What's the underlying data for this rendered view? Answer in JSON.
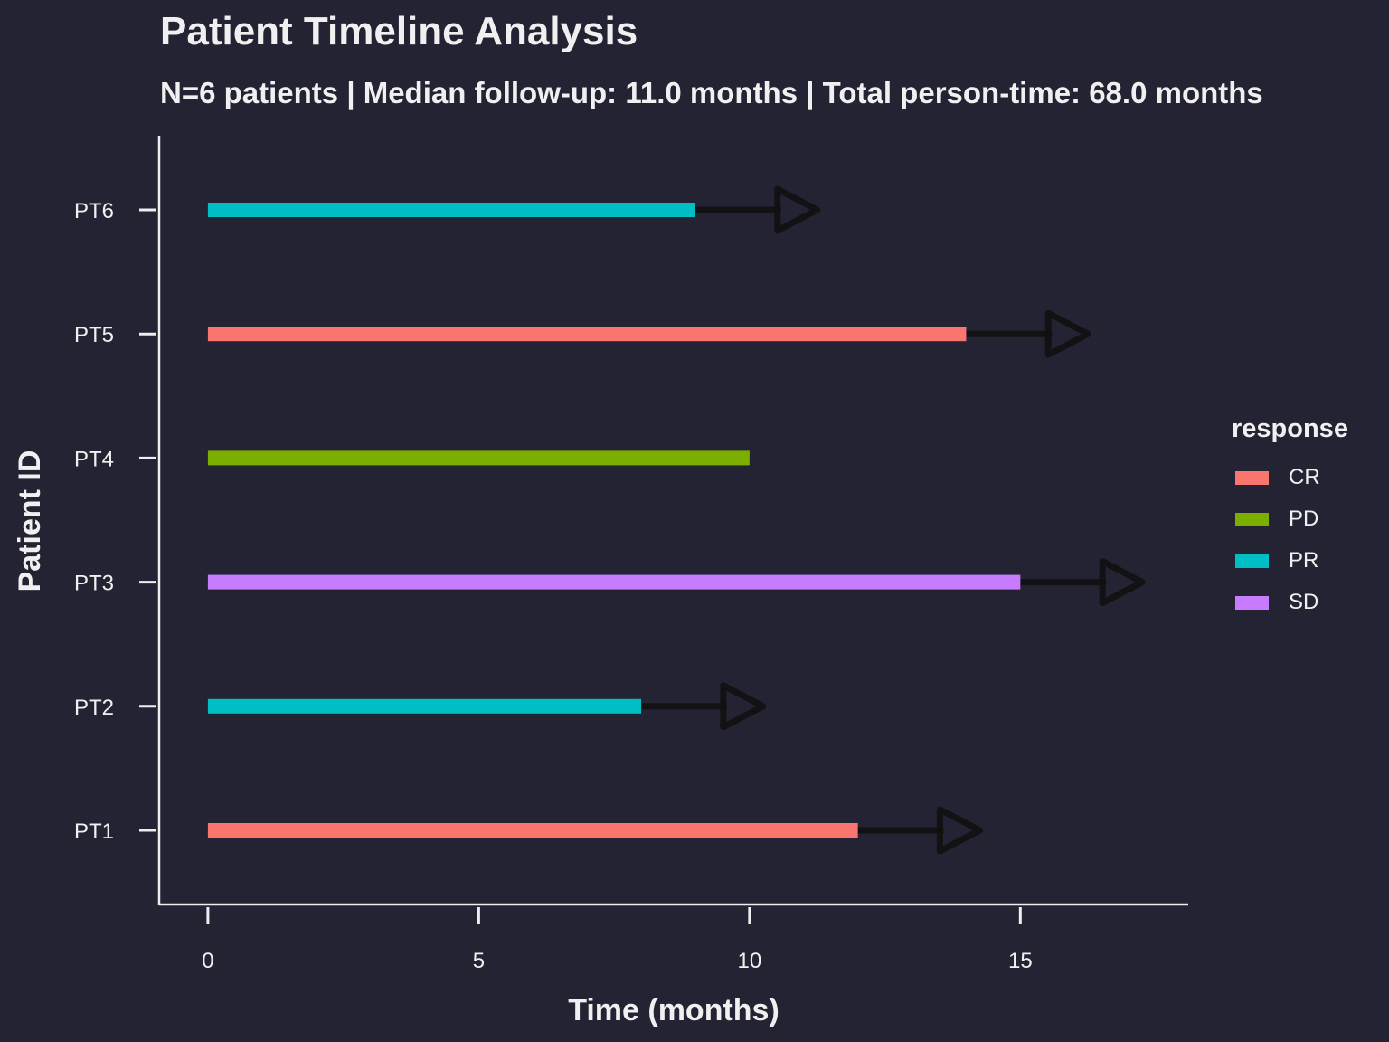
{
  "chart_data": {
    "type": "bar",
    "title": "Patient Timeline Analysis",
    "subtitle": "N=6 patients | Median follow-up: 11.0 months | Total person-time: 68.0 months",
    "xlabel": "Time (months)",
    "ylabel": "Patient ID",
    "xlim": [
      -0.9,
      18.1
    ],
    "x_ticks": [
      0,
      5,
      10,
      15
    ],
    "categories": [
      "PT1",
      "PT2",
      "PT3",
      "PT4",
      "PT5",
      "PT6"
    ],
    "patients": [
      {
        "id": "PT1",
        "start": 0,
        "end": 12,
        "response": "CR",
        "ongoing": true
      },
      {
        "id": "PT2",
        "start": 0,
        "end": 8,
        "response": "PR",
        "ongoing": true
      },
      {
        "id": "PT3",
        "start": 0,
        "end": 15,
        "response": "SD",
        "ongoing": true
      },
      {
        "id": "PT4",
        "start": 0,
        "end": 10,
        "response": "PD",
        "ongoing": false
      },
      {
        "id": "PT5",
        "start": 0,
        "end": 14,
        "response": "CR",
        "ongoing": true
      },
      {
        "id": "PT6",
        "start": 0,
        "end": 9,
        "response": "PR",
        "ongoing": true
      }
    ],
    "legend": {
      "title": "response",
      "position": "right",
      "items": [
        {
          "label": "CR",
          "color": "#F8766D"
        },
        {
          "label": "PD",
          "color": "#7CAE00"
        },
        {
          "label": "PR",
          "color": "#00BFC4"
        },
        {
          "label": "SD",
          "color": "#C77CFF"
        }
      ]
    },
    "arrow_color": "#111111",
    "background": "#232334",
    "axis_color": "#eeeeee",
    "grid": false
  }
}
